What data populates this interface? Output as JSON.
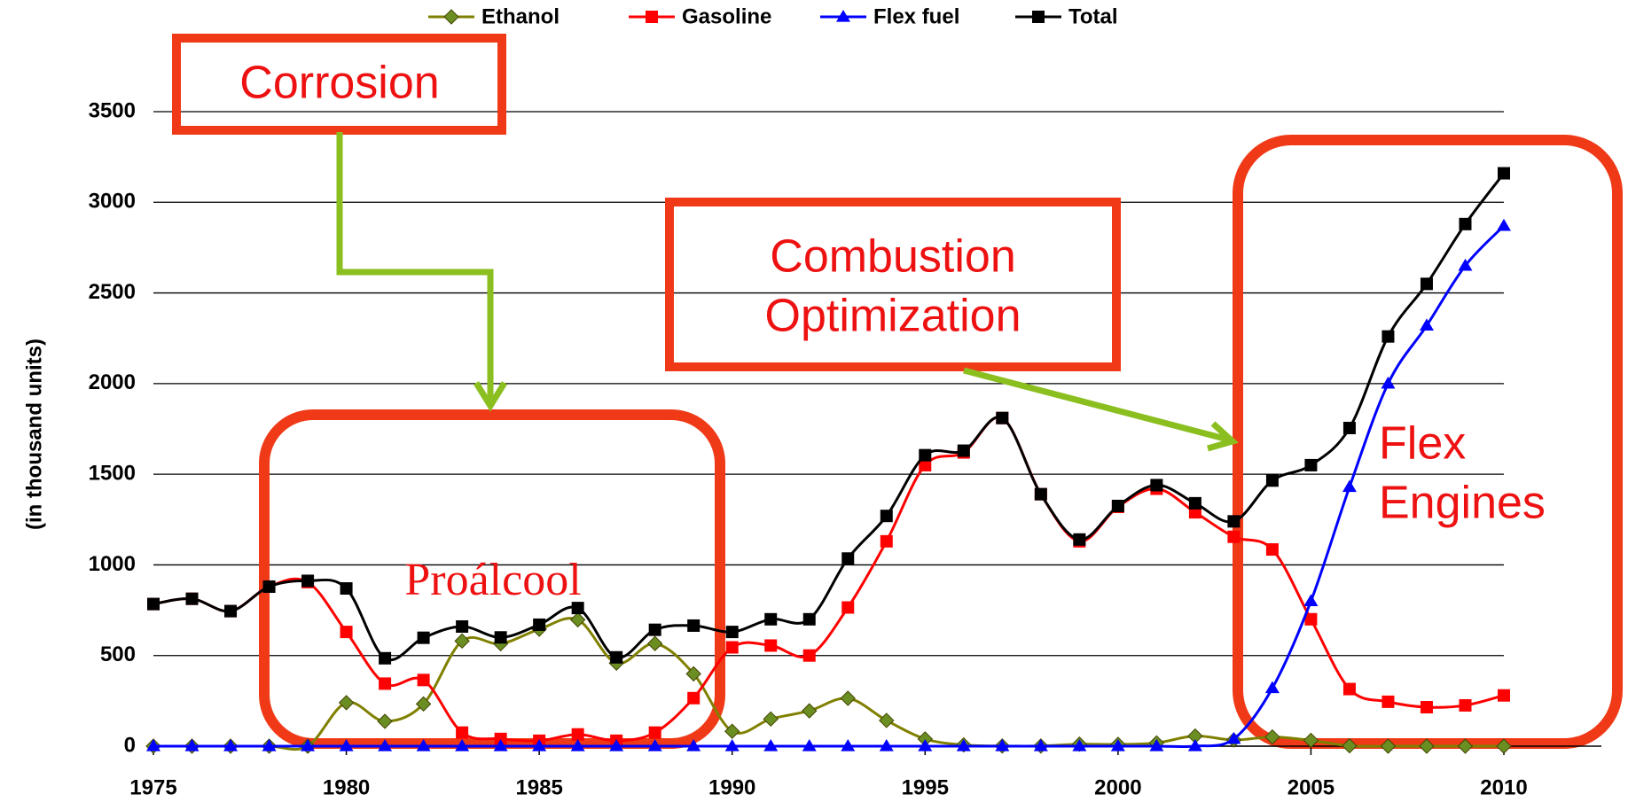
{
  "chart_data": {
    "type": "line",
    "y_label": "(in thousand units)",
    "x": [
      1975,
      1976,
      1977,
      1978,
      1979,
      1980,
      1981,
      1982,
      1983,
      1984,
      1985,
      1986,
      1987,
      1988,
      1989,
      1990,
      1991,
      1992,
      1993,
      1994,
      1995,
      1996,
      1997,
      1998,
      1999,
      2000,
      2001,
      2002,
      2003,
      2004,
      2005,
      2006,
      2007,
      2008,
      2009,
      2010
    ],
    "series": [
      {
        "name": "Ethanol",
        "color": "#6b8e23",
        "marker": "diamond",
        "values": [
          0,
          0,
          0,
          0,
          0,
          240,
          137,
          233,
          580,
          565,
          645,
          697,
          458,
          566,
          399,
          82,
          150,
          195,
          264,
          142,
          40,
          7,
          1,
          1,
          11,
          10,
          18,
          56,
          34,
          51,
          32,
          2,
          0,
          0,
          0,
          0
        ]
      },
      {
        "name": "Gasoline",
        "color": "#ff0000",
        "marker": "square",
        "values": [
          784,
          813,
          745,
          880,
          905,
          630,
          345,
          365,
          75,
          40,
          30,
          65,
          30,
          75,
          265,
          545,
          555,
          500,
          765,
          1130,
          1550,
          1620,
          1810,
          1390,
          1130,
          1320,
          1420,
          1290,
          1155,
          1085,
          700,
          315,
          245,
          215,
          225,
          280
        ]
      },
      {
        "name": "Flex fuel",
        "color": "#0000ff",
        "marker": "triangle",
        "values": [
          0,
          0,
          0,
          0,
          0,
          0,
          0,
          0,
          0,
          0,
          0,
          0,
          0,
          0,
          0,
          0,
          0,
          0,
          0,
          0,
          0,
          0,
          0,
          0,
          0,
          0,
          0,
          0,
          40,
          320,
          800,
          1430,
          2000,
          2320,
          2650,
          2870
        ]
      },
      {
        "name": "Total",
        "color": "#000000",
        "marker": "square",
        "values": [
          784,
          813,
          745,
          880,
          912,
          870,
          485,
          598,
          660,
          600,
          670,
          762,
          490,
          642,
          665,
          630,
          700,
          700,
          1035,
          1270,
          1605,
          1630,
          1810,
          1390,
          1140,
          1325,
          1440,
          1340,
          1240,
          1465,
          1550,
          1755,
          2260,
          2550,
          2880,
          3160
        ]
      }
    ],
    "xlim": [
      1975,
      2010
    ],
    "xticks": [
      1975,
      1980,
      1985,
      1990,
      1995,
      2000,
      2005,
      2010
    ],
    "ylim": [
      0,
      3500
    ],
    "yticks": [
      0,
      500,
      1000,
      1500,
      2000,
      2500,
      3000,
      3500
    ],
    "grid": true,
    "legend": "top",
    "annotations": [
      {
        "lines": [
          "Corrosion"
        ]
      },
      {
        "lines": [
          "Combustion",
          "Optimization"
        ]
      },
      {
        "lines": [
          "Proálcool"
        ]
      },
      {
        "lines": [
          "Flex",
          "Engines"
        ]
      }
    ]
  }
}
